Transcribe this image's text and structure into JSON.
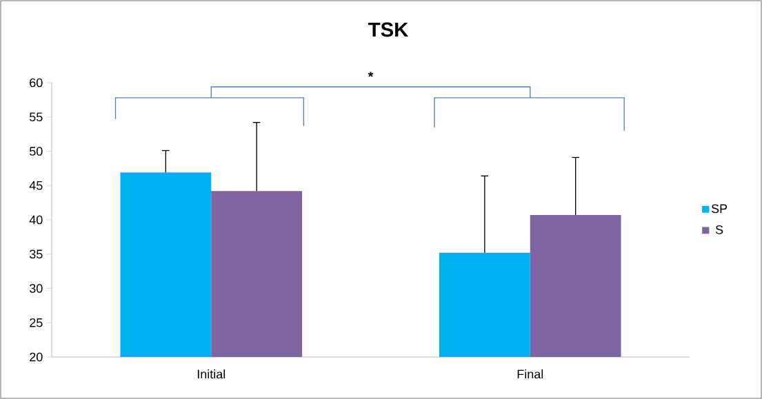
{
  "chart_data": {
    "type": "bar",
    "title": "TSK",
    "categories": [
      "Initial",
      "Final"
    ],
    "series": [
      {
        "name": "SP",
        "color": "#00b0f0",
        "values": [
          46.9,
          35.2
        ],
        "errors": [
          [
            46.9,
            50.1
          ],
          [
            35.2,
            46.4
          ]
        ]
      },
      {
        "name": "S",
        "color": "#8064a2",
        "values": [
          44.2,
          40.7
        ],
        "errors": [
          [
            44.2,
            54.2
          ],
          [
            40.7,
            49.1
          ]
        ]
      }
    ],
    "ylim": [
      20,
      60
    ],
    "yticks": [
      20,
      25,
      30,
      35,
      40,
      45,
      50,
      55,
      60
    ],
    "legend": "right",
    "annotations": [
      "*"
    ]
  }
}
